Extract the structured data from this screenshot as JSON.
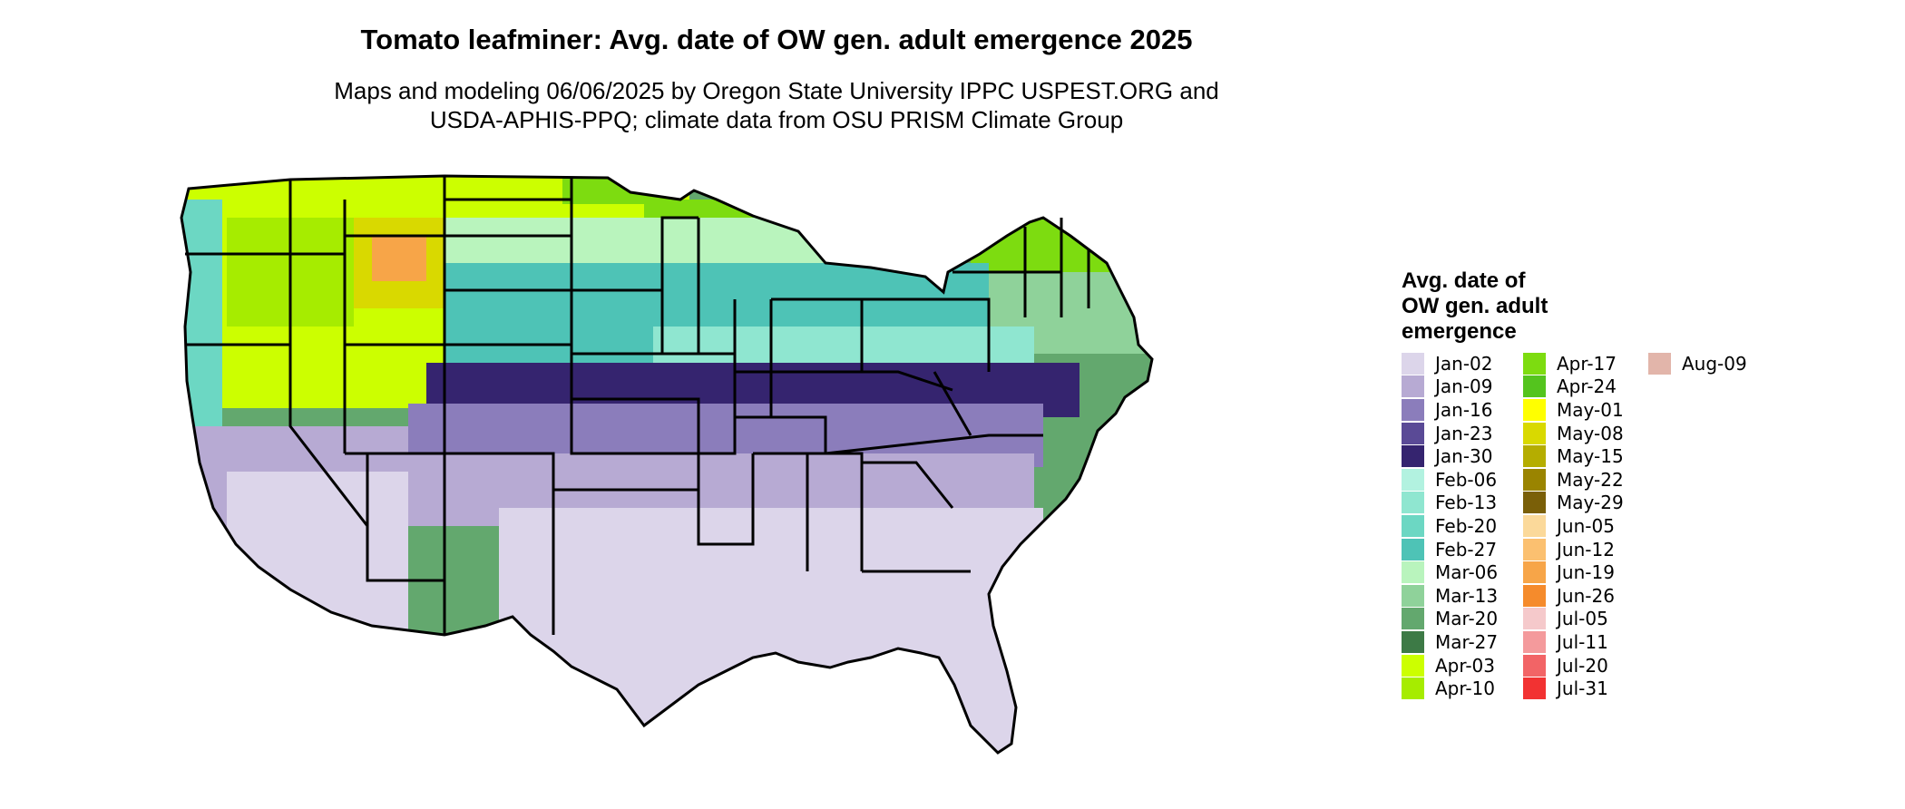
{
  "title": "Tomato leafminer: Avg. date of OW gen. adult emergence 2025",
  "subtitle": {
    "line1": "Maps and modeling 06/06/2025 by Oregon State University IPPC USPEST.ORG and",
    "line2": "USDA-APHIS-PPQ; climate data from OSU PRISM Climate Group"
  },
  "legend": {
    "title_line1": "Avg. date of",
    "title_line2": "OW gen. adult",
    "title_line3": "emergence",
    "columns": [
      [
        {
          "label": "Jan-02",
          "color": "#dcd5ea"
        },
        {
          "label": "Jan-09",
          "color": "#b7aad3"
        },
        {
          "label": "Jan-16",
          "color": "#8b7dbb"
        },
        {
          "label": "Jan-23",
          "color": "#5a4a96"
        },
        {
          "label": "Jan-30",
          "color": "#35246f"
        },
        {
          "label": "Feb-06",
          "color": "#b2f2e0"
        },
        {
          "label": "Feb-13",
          "color": "#8fe6d0"
        },
        {
          "label": "Feb-20",
          "color": "#6cd7c3"
        },
        {
          "label": "Feb-27",
          "color": "#4ec3b6"
        },
        {
          "label": "Mar-06",
          "color": "#b9f4bd"
        },
        {
          "label": "Mar-13",
          "color": "#8fd29a"
        },
        {
          "label": "Mar-20",
          "color": "#63a86e"
        },
        {
          "label": "Mar-27",
          "color": "#3d7a46"
        },
        {
          "label": "Apr-03",
          "color": "#ccff00"
        },
        {
          "label": "Apr-10",
          "color": "#a6ec00"
        }
      ],
      [
        {
          "label": "Apr-17",
          "color": "#7ddc10"
        },
        {
          "label": "Apr-24",
          "color": "#54c41e"
        },
        {
          "label": "May-01",
          "color": "#ffff00"
        },
        {
          "label": "May-08",
          "color": "#d9d900"
        },
        {
          "label": "May-15",
          "color": "#b5ad00"
        },
        {
          "label": "May-22",
          "color": "#9a8400"
        },
        {
          "label": "May-29",
          "color": "#7a5f08"
        },
        {
          "label": "Jun-05",
          "color": "#fbd99a"
        },
        {
          "label": "Jun-12",
          "color": "#fbc070"
        },
        {
          "label": "Jun-19",
          "color": "#f7a548"
        },
        {
          "label": "Jun-26",
          "color": "#f58b2c"
        },
        {
          "label": "Jul-05",
          "color": "#f5c9cb"
        },
        {
          "label": "Jul-11",
          "color": "#f49a9c"
        },
        {
          "label": "Jul-20",
          "color": "#f26466"
        },
        {
          "label": "Jul-31",
          "color": "#f23232"
        }
      ],
      [
        {
          "label": "Aug-09",
          "color": "#e2b5aa"
        }
      ]
    ]
  },
  "map": {
    "region": "Contiguous United States",
    "outline_color": "#000000",
    "bands": [
      {
        "date": "Jan-02",
        "color": "#dcd5ea"
      },
      {
        "date": "Jan-09",
        "color": "#b7aad3"
      },
      {
        "date": "Jan-16",
        "color": "#8b7dbb"
      },
      {
        "date": "Jan-30",
        "color": "#35246f"
      },
      {
        "date": "Feb-13",
        "color": "#8fe6d0"
      },
      {
        "date": "Feb-27",
        "color": "#4ec3b6"
      },
      {
        "date": "Mar-06",
        "color": "#b9f4bd"
      },
      {
        "date": "Mar-13",
        "color": "#8fd29a"
      },
      {
        "date": "Mar-20",
        "color": "#63a86e"
      },
      {
        "date": "Apr-03",
        "color": "#ccff00"
      },
      {
        "date": "Apr-17",
        "color": "#7ddc10"
      }
    ]
  }
}
